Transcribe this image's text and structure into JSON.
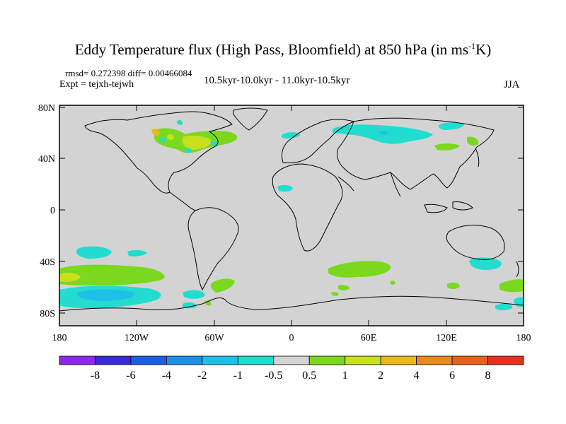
{
  "title": {
    "main": "Eddy Temperature flux (High Pass, Bloomfield) at 850 hPa (in ms",
    "sup": "-1",
    "end": "K)"
  },
  "stats": "rmsd= 0.272398 diff= 0.00466084",
  "experiment": "Expt = tejxh-tejwh",
  "period": "10.5kyr-10.0kyr - 11.0kyr-10.5kyr",
  "season": "JJA",
  "axes": {
    "lat_ticks": [
      "80N",
      "40N",
      "0",
      "40S",
      "80S"
    ],
    "lon_ticks": [
      "180",
      "120W",
      "60W",
      "0",
      "60E",
      "120E",
      "180"
    ]
  },
  "colorbar": {
    "labels": [
      "-8",
      "-6",
      "-4",
      "-2",
      "-1",
      "-0.5",
      "0.5",
      "1",
      "2",
      "4",
      "6",
      "8"
    ],
    "colors": [
      "#8b2be8",
      "#3a2bd8",
      "#1e5fe0",
      "#1e90e8",
      "#1ec0e8",
      "#22dcd0",
      "#d3d3d3",
      "#7ad81e",
      "#c8e01e",
      "#e8b81e",
      "#e88a1e",
      "#e8601e",
      "#e8301e"
    ]
  },
  "map_colors": {
    "ocean": "#d3d3d3",
    "coast": "#000000"
  }
}
